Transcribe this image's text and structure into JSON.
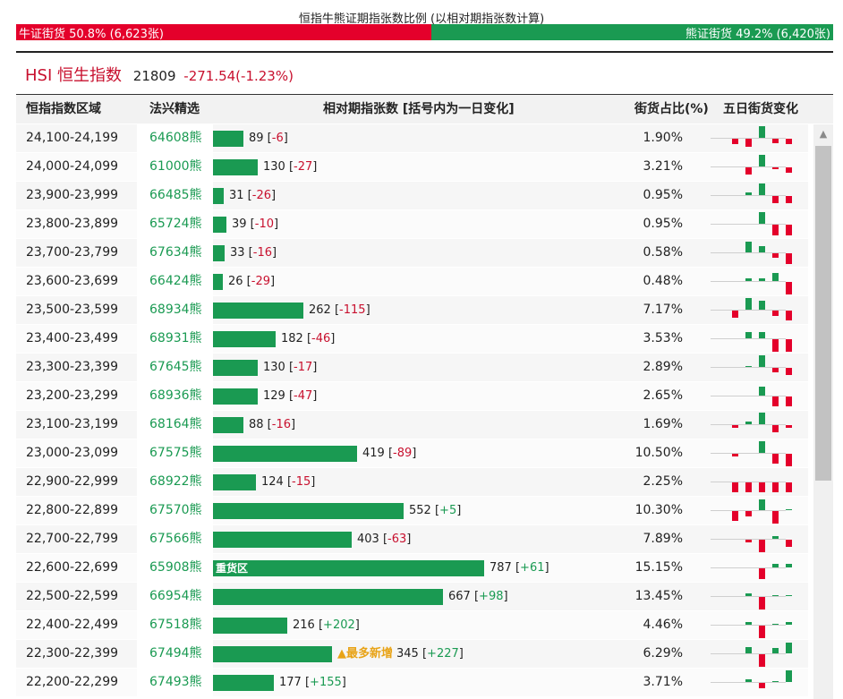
{
  "top_title": "恒指牛熊证期指张数比例 (以相对期指张数计算)",
  "ratio": {
    "bull_label": "牛证街货 50.8% (6,623张)",
    "bear_label": "熊证街货 49.2% (6,420张)",
    "bull_pct": 50.8,
    "bear_pct": 49.2,
    "bull_color": "#e4002b",
    "bear_color": "#1a9a52"
  },
  "index": {
    "name": "HSI 恒生指数",
    "price": "21809",
    "change": "-271.54(-1.23%)"
  },
  "columns": {
    "range": "恒指指数区域",
    "pick": "法兴精选",
    "contracts": "相对期指张数 [括号内为一日变化]",
    "share": "街货占比(%)",
    "five_day": "五日街货变化"
  },
  "rows": [
    {
      "range": "24,100-24,199",
      "code": "64608熊",
      "value": "89",
      "change": "-6",
      "share": "1.90%",
      "five_day": [
        -4,
        -6,
        9,
        -3,
        -4
      ]
    },
    {
      "range": "24,000-24,099",
      "code": "61000熊",
      "value": "130",
      "change": "-27",
      "share": "3.21%",
      "five_day": [
        0,
        -5,
        9,
        -1,
        -4
      ]
    },
    {
      "range": "23,900-23,999",
      "code": "66485熊",
      "value": "31",
      "change": "-26",
      "share": "0.95%",
      "five_day": [
        0,
        2,
        9,
        -5,
        -5
      ]
    },
    {
      "range": "23,800-23,899",
      "code": "65724熊",
      "value": "39",
      "change": "-10",
      "share": "0.95%",
      "five_day": [
        0,
        0,
        9,
        -8,
        -8
      ]
    },
    {
      "range": "23,700-23,799",
      "code": "67634熊",
      "value": "33",
      "change": "-16",
      "share": "0.58%",
      "five_day": [
        0,
        8,
        5,
        -3,
        -8
      ]
    },
    {
      "range": "23,600-23,699",
      "code": "66424熊",
      "value": "26",
      "change": "-29",
      "share": "0.48%",
      "five_day": [
        0,
        2,
        2,
        6,
        -9
      ]
    },
    {
      "range": "23,500-23,599",
      "code": "68934熊",
      "value": "262",
      "change": "-115",
      "share": "7.17%",
      "five_day": [
        -5,
        9,
        7,
        -4,
        -7
      ]
    },
    {
      "range": "23,400-23,499",
      "code": "68931熊",
      "value": "182",
      "change": "-46",
      "share": "3.53%",
      "five_day": [
        0,
        5,
        5,
        -9,
        -9
      ]
    },
    {
      "range": "23,300-23,399",
      "code": "67645熊",
      "value": "130",
      "change": "-17",
      "share": "2.89%",
      "five_day": [
        0,
        1,
        9,
        -3,
        -5
      ]
    },
    {
      "range": "23,200-23,299",
      "code": "68936熊",
      "value": "129",
      "change": "-47",
      "share": "2.65%",
      "five_day": [
        0,
        0,
        7,
        -7,
        -7
      ]
    },
    {
      "range": "23,100-23,199",
      "code": "68164熊",
      "value": "88",
      "change": "-16",
      "share": "1.69%",
      "five_day": [
        -2,
        2,
        9,
        -5,
        -2
      ]
    },
    {
      "range": "23,000-23,099",
      "code": "67575熊",
      "value": "419",
      "change": "-89",
      "share": "10.50%",
      "five_day": [
        -2,
        0,
        9,
        -7,
        -9
      ]
    },
    {
      "range": "22,900-22,999",
      "code": "68922熊",
      "value": "124",
      "change": "-15",
      "share": "2.25%",
      "five_day": [
        -7,
        -7,
        -7,
        -7,
        -7
      ]
    },
    {
      "range": "22,800-22,899",
      "code": "67570熊",
      "value": "552",
      "change": "+5",
      "share": "10.30%",
      "five_day": [
        -7,
        -4,
        8,
        -9,
        1
      ]
    },
    {
      "range": "22,700-22,799",
      "code": "67566熊",
      "value": "403",
      "change": "-63",
      "share": "7.89%",
      "five_day": [
        0,
        -2,
        -9,
        2,
        -5
      ]
    },
    {
      "range": "22,600-22,699",
      "code": "65908熊",
      "value": "787",
      "change": "+61",
      "share": "15.15%",
      "five_day": [
        0,
        0,
        -8,
        3,
        3
      ],
      "tag": "重货区"
    },
    {
      "range": "22,500-22,599",
      "code": "66954熊",
      "value": "667",
      "change": "+98",
      "share": "13.45%",
      "five_day": [
        0,
        2,
        -9,
        1,
        1
      ]
    },
    {
      "range": "22,400-22,499",
      "code": "67518熊",
      "value": "216",
      "change": "+202",
      "share": "4.46%",
      "five_day": [
        0,
        2,
        -9,
        1,
        2
      ]
    },
    {
      "range": "22,300-22,399",
      "code": "67494熊",
      "value": "345",
      "change": "+227",
      "share": "6.29%",
      "five_day": [
        0,
        5,
        -9,
        4,
        8
      ],
      "tag": "▲最多新增"
    },
    {
      "range": "22,200-22,299",
      "code": "67493熊",
      "value": "177",
      "change": "+155",
      "share": "3.71%",
      "five_day": [
        0,
        2,
        -4,
        1,
        9
      ]
    }
  ]
}
